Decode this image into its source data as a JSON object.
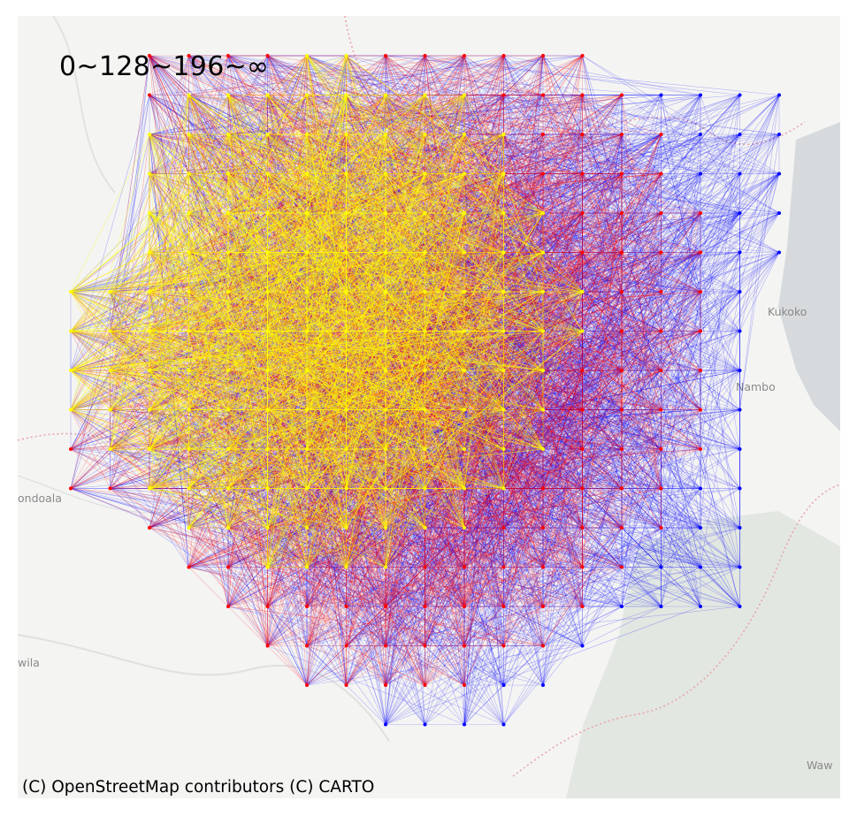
{
  "map": {
    "legend_title": "0~128~196~∞",
    "attribution": "(C) OpenStreetMap contributors (C) CARTO",
    "basemap_style": "CARTO light",
    "place_labels": [
      "Kukoko",
      "Nambo",
      "ondoala",
      "wila",
      "Waw"
    ],
    "layers": [
      {
        "bin": "0~128",
        "color": "#0000ff"
      },
      {
        "bin": "128~196",
        "color": "#ff0000"
      },
      {
        "bin": "196~∞",
        "color": "#ffff00"
      }
    ]
  }
}
